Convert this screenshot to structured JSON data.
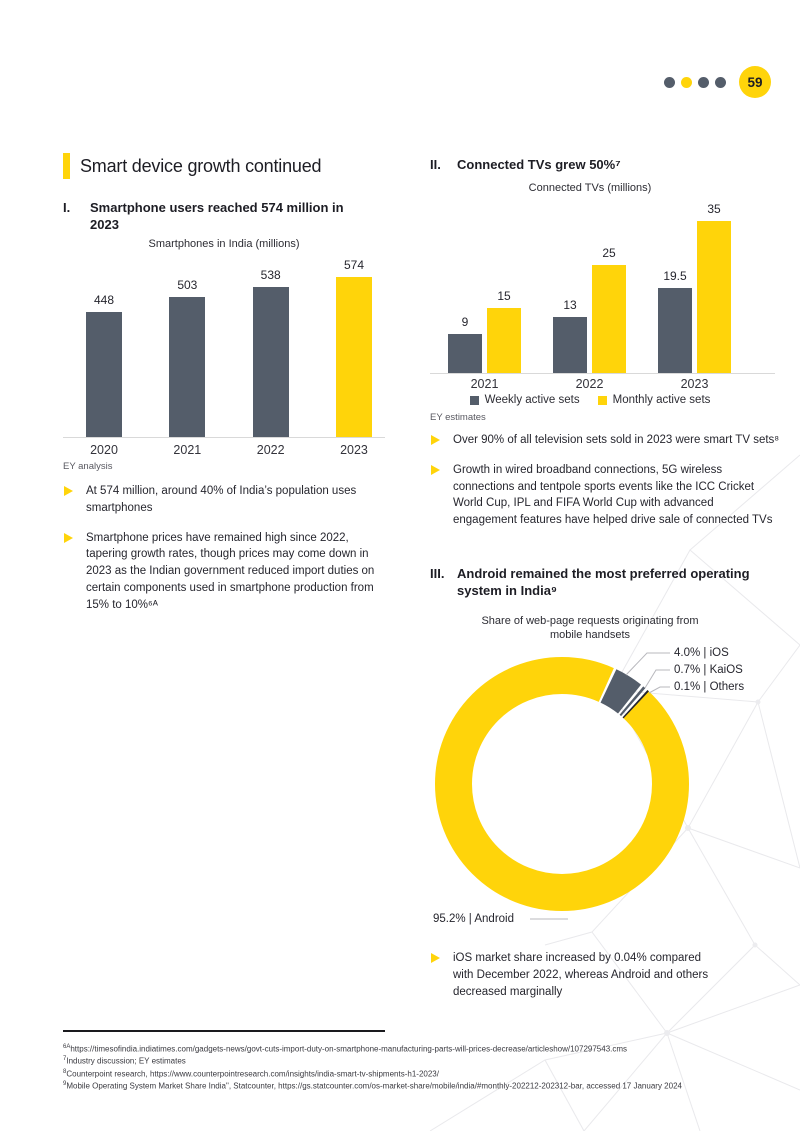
{
  "page_badge": {
    "dots": [
      "#545d6a",
      "#ffd40a",
      "#545d6a",
      "#545d6a"
    ],
    "number": "59"
  },
  "colors": {
    "accent_yellow": "#ffd40a",
    "slate_gray": "#545d6a",
    "dark": "#23232d"
  },
  "left_column": {
    "section_title": "Smart device growth continued",
    "heading": {
      "numeral": "I.",
      "text": "Smartphone users reached 574 million in 2023"
    },
    "bullets": [
      "At 574 million, around 40% of India’s population uses smartphones",
      "Smartphone prices have remained high since 2022, tapering growth rates, though prices may come down in 2023 as the Indian government reduced import duties on certain components used in smartphone production from 15% to 10%⁶ᴬ"
    ]
  },
  "right_column": {
    "heading2": {
      "numeral": "II.",
      "text": "Connected TVs grew 50%⁷"
    },
    "bullets2": [
      "Over 90% of all television sets sold in 2023 were smart TV sets⁸",
      "Growth in wired broadband connections, 5G wireless connections and tentpole sports events like the ICC Cricket World Cup, IPL and FIFA World Cup with advanced engagement features have helped drive sale of connected TVs"
    ],
    "heading3": {
      "numeral": "III.",
      "text": "Android remained the most preferred operating system in India⁹"
    },
    "bullets3": [
      "iOS market share increased by 0.04% compared with December 2022, whereas Android and others decreased marginally"
    ]
  },
  "chart_data": [
    {
      "type": "bar",
      "title": "Smartphones in India (millions)",
      "categories": [
        "2020",
        "2021",
        "2022",
        "2023"
      ],
      "values": [
        448,
        503,
        538,
        574
      ],
      "bar_colors": [
        "#545d6a",
        "#545d6a",
        "#545d6a",
        "#ffd40a"
      ],
      "source": "EY analysis",
      "ylim": [
        0,
        600
      ],
      "grid": false,
      "data_labels": true
    },
    {
      "type": "bar",
      "title": "Connected TVs (millions)",
      "categories": [
        "2021",
        "2022",
        "2023"
      ],
      "series": [
        {
          "name": "Weekly active sets",
          "color": "#545d6a",
          "values": [
            9,
            13,
            19.5
          ]
        },
        {
          "name": "Monthly active sets",
          "color": "#ffd40a",
          "values": [
            15,
            25,
            35
          ]
        }
      ],
      "source": "EY estimates",
      "ylim": [
        0,
        38
      ],
      "grid": false,
      "legend_position": "bottom",
      "data_labels": true
    },
    {
      "type": "pie",
      "donut": true,
      "title": "Share of web-page requests originating from mobile handsets",
      "slices": [
        {
          "label": "Android",
          "value": 95.2,
          "display": "95.2% | Android",
          "color": "#ffd40a"
        },
        {
          "label": "iOS",
          "value": 4.0,
          "display": "4.0% | iOS",
          "color": "#545d6a"
        },
        {
          "label": "KaiOS",
          "value": 0.7,
          "display": "0.7% | KaiOS",
          "color": "#545d6a"
        },
        {
          "label": "Others",
          "value": 0.1,
          "display": "0.1% | Others",
          "color": "#23232d"
        }
      ]
    }
  ],
  "footnotes": [
    {
      "sup": "6A",
      "text": "https://timesofindia.indiatimes.com/gadgets-news/govt-cuts-import-duty-on-smartphone-manufacturing-parts-will-prices-decrease/articleshow/107297543.cms"
    },
    {
      "sup": "7",
      "text": "Industry discussion; EY estimates"
    },
    {
      "sup": "8",
      "text": "Counterpoint research, https://www.counterpointresearch.com/insights/india-smart-tv-shipments-h1-2023/"
    },
    {
      "sup": "9",
      "text": "Mobile Operating System Market Share India\", Statcounter, https://gs.statcounter.com/os-market-share/mobile/india/#monthly-202212-202312-bar, accessed 17 January 2024"
    }
  ]
}
